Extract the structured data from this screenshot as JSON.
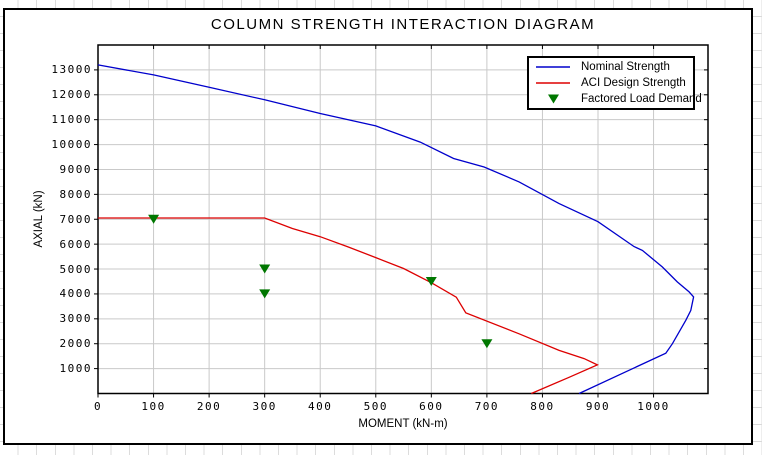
{
  "chart_data": {
    "type": "line",
    "title": "COLUMN STRENGTH INTERACTION DIAGRAM",
    "xlabel": "MOMENT (kN-m)",
    "ylabel": "AXIAL (kN)",
    "xlim": [
      0,
      1098
    ],
    "ylim": [
      0,
      14000
    ],
    "x_ticks": [
      0,
      100,
      200,
      300,
      400,
      500,
      600,
      700,
      800,
      900,
      1000
    ],
    "y_ticks": [
      1000,
      2000,
      3000,
      4000,
      5000,
      6000,
      7000,
      8000,
      9000,
      10000,
      11000,
      12000,
      13000
    ],
    "grid": true,
    "legend_position": "top-right",
    "axis_color": "#000000",
    "gridline_color": "#c9c9c9",
    "plot_background": "#ffffff",
    "series": [
      {
        "name": "Nominal Strength",
        "type": "line",
        "color": "#0000cc",
        "points": [
          [
            0,
            13200
          ],
          [
            100,
            12800
          ],
          [
            200,
            12300
          ],
          [
            300,
            11800
          ],
          [
            400,
            11250
          ],
          [
            500,
            10750
          ],
          [
            580,
            10100
          ],
          [
            640,
            9440
          ],
          [
            695,
            9100
          ],
          [
            758,
            8500
          ],
          [
            830,
            7630
          ],
          [
            900,
            6900
          ],
          [
            965,
            5900
          ],
          [
            980,
            5750
          ],
          [
            1016,
            5080
          ],
          [
            1043,
            4480
          ],
          [
            1064,
            4080
          ],
          [
            1072,
            3880
          ],
          [
            1067,
            3340
          ],
          [
            1058,
            2940
          ],
          [
            1034,
            2000
          ],
          [
            1022,
            1620
          ],
          [
            866,
            0
          ]
        ]
      },
      {
        "name": "ACI Design Strength",
        "type": "line",
        "color": "#dd0000",
        "points": [
          [
            0,
            7050
          ],
          [
            300,
            7050
          ],
          [
            350,
            6630
          ],
          [
            400,
            6300
          ],
          [
            450,
            5890
          ],
          [
            500,
            5460
          ],
          [
            550,
            5020
          ],
          [
            600,
            4450
          ],
          [
            645,
            3870
          ],
          [
            662,
            3240
          ],
          [
            758,
            2400
          ],
          [
            830,
            1730
          ],
          [
            875,
            1400
          ],
          [
            899,
            1150
          ],
          [
            848,
            650
          ],
          [
            780,
            0
          ]
        ]
      },
      {
        "name": "Factored Load Demand",
        "type": "scatter",
        "marker": "triangle-down",
        "color": "#007700",
        "points": [
          [
            100,
            7000
          ],
          [
            300,
            5000
          ],
          [
            300,
            4000
          ],
          [
            600,
            4500
          ],
          [
            700,
            2000
          ]
        ]
      }
    ]
  },
  "spreadsheet": {
    "gridline_color": "#dcdcdc",
    "background": "#ffffff"
  }
}
